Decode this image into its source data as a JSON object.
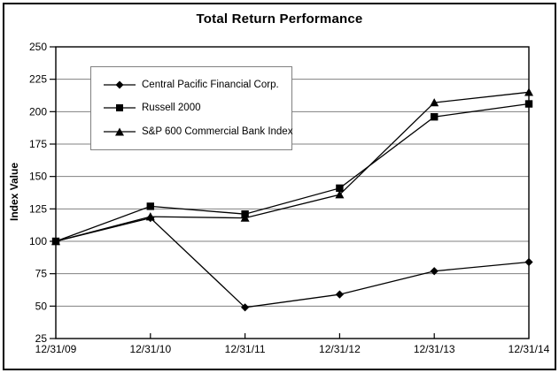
{
  "chart_data": {
    "type": "line",
    "title": "Total Return Performance",
    "xlabel": "",
    "ylabel": "Index Value",
    "x": [
      "12/31/09",
      "12/31/10",
      "12/31/11",
      "12/31/12",
      "12/31/13",
      "12/31/14"
    ],
    "series": [
      {
        "name": "Central Pacific Financial Corp.",
        "marker": "diamond",
        "values": [
          100,
          118,
          49,
          59,
          77,
          84
        ]
      },
      {
        "name": "Russell 2000",
        "marker": "square",
        "values": [
          100,
          127,
          121,
          141,
          196,
          206
        ]
      },
      {
        "name": "S&P 600 Commercial Bank Index",
        "marker": "triangle",
        "values": [
          100,
          119,
          118,
          136,
          207,
          215
        ]
      }
    ],
    "ylim": [
      25,
      250
    ],
    "y_ticks": [
      25,
      50,
      75,
      100,
      125,
      150,
      175,
      200,
      225,
      250
    ],
    "grid": true,
    "legend_position": "upper-left-inside",
    "colors": {
      "line": "#000000",
      "grid": "#808080",
      "legend_border": "#808080",
      "plot_border": "#000000",
      "background": "#ffffff"
    }
  }
}
